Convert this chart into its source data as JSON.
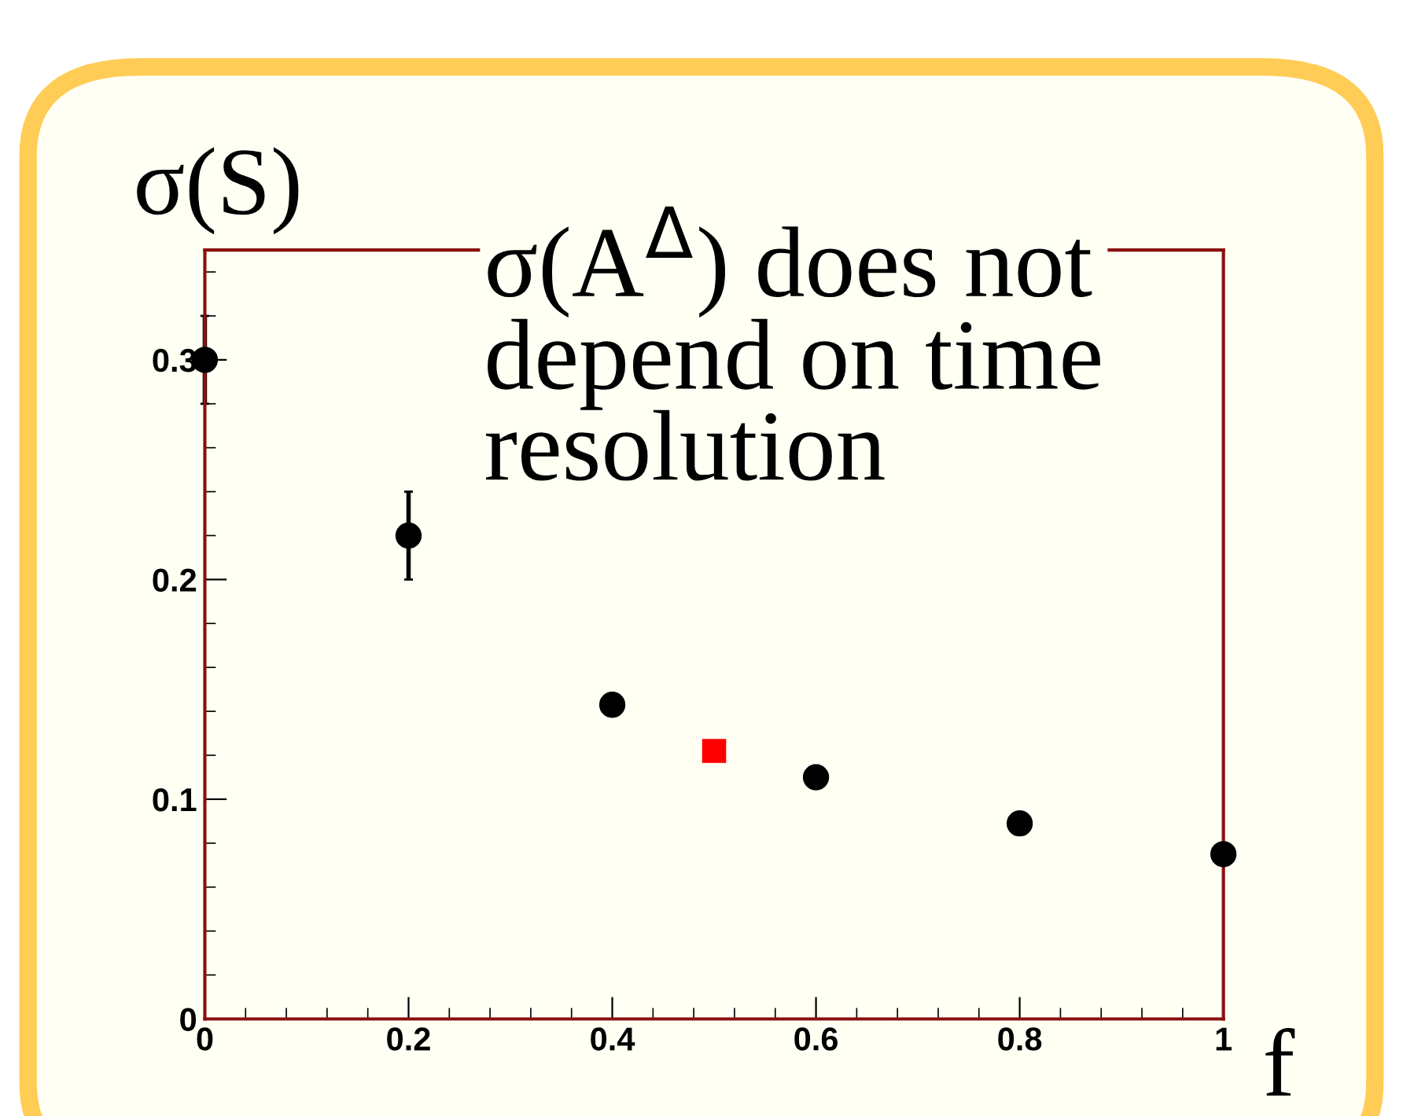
{
  "chart_data": {
    "type": "scatter",
    "ylabel": "σ(S)",
    "xlabel": "f",
    "annotations": [
      "σ(A$^{Δ}$) does not depend on time resolution"
    ],
    "series": [
      {
        "color": "#000000",
        "marker": "circle",
        "x": [
          0,
          0.2,
          0.4,
          0.6,
          0.8,
          1
        ],
        "values": [
          0.3,
          0.22,
          0.143,
          0.11,
          0.089,
          0.075
        ],
        "errors": [
          0.02,
          0.02,
          null,
          null,
          null,
          null
        ]
      },
      {
        "color": "#ff0000",
        "marker": "square",
        "x": [
          0.5
        ],
        "values": [
          0.122
        ]
      }
    ],
    "xlim": [
      0,
      1
    ],
    "xticks": [
      0,
      0.2,
      0.4,
      0.6,
      0.8,
      1
    ],
    "ylim": [
      0,
      0.35
    ],
    "yticks": [
      0,
      0.1,
      0.2,
      0.3
    ]
  }
}
